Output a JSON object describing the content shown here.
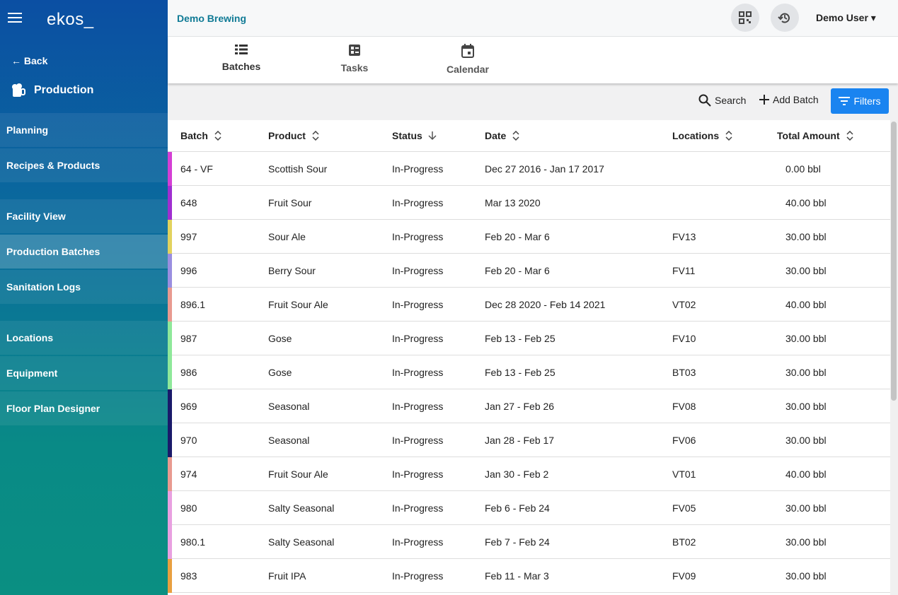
{
  "sidebar": {
    "logo": "ekos_",
    "back": "Back",
    "section": "Production",
    "groups": [
      [
        "Planning",
        "Recipes & Products"
      ],
      [
        "Facility View",
        "Production Batches",
        "Sanitation Logs"
      ],
      [
        "Locations",
        "Equipment",
        "Floor Plan Designer"
      ]
    ],
    "active": "Production Batches"
  },
  "header": {
    "company": "Demo Brewing",
    "user": "Demo User"
  },
  "tabs": [
    "Batches",
    "Tasks",
    "Calendar"
  ],
  "toolbar": {
    "search": "Search",
    "add": "Add Batch",
    "filters": "Filters"
  },
  "table": {
    "columns": [
      "Batch",
      "Product",
      "Status",
      "Date",
      "Locations",
      "Total Amount"
    ],
    "rows": [
      {
        "color": "#d43fd4",
        "cells": [
          "64 - VF",
          "Scottish Sour",
          "In-Progress",
          "Dec 27 2016 - Jan 17 2017",
          null,
          "0.00 bbl"
        ]
      },
      {
        "color": "#a02ed0",
        "cells": [
          "648",
          "Fruit Sour",
          "In-Progress",
          "Mar 13 2020",
          null,
          "40.00 bbl"
        ]
      },
      {
        "color": "#e2d25e",
        "cells": [
          "997",
          "Sour Ale",
          "In-Progress",
          "Feb 20 - Mar 6",
          "FV13",
          "30.00 bbl"
        ]
      },
      {
        "color": "#9a8ee0",
        "cells": [
          "996",
          "Berry Sour",
          "In-Progress",
          "Feb 20 - Mar 6",
          "FV11",
          "30.00 bbl"
        ]
      },
      {
        "color": "#e89a90",
        "cells": [
          "896.1",
          "Fruit Sour Ale",
          "In-Progress",
          "Dec 28 2020 - Feb 14 2021",
          "VT02",
          "40.00 bbl"
        ]
      },
      {
        "color": "#8ee89a",
        "cells": [
          "987",
          "Gose",
          "In-Progress",
          "Feb 13 - Feb 25",
          "FV10",
          "30.00 bbl"
        ]
      },
      {
        "color": "#8ee89a",
        "cells": [
          "986",
          "Gose",
          "In-Progress",
          "Feb 13 - Feb 25",
          "BT03",
          "30.00 bbl"
        ]
      },
      {
        "color": "#1a1a6a",
        "cells": [
          "969",
          "Seasonal",
          "In-Progress",
          "Jan 27 - Feb 26",
          "FV08",
          "30.00 bbl"
        ]
      },
      {
        "color": "#1a1a6a",
        "cells": [
          "970",
          "Seasonal",
          "In-Progress",
          "Jan 28 - Feb 17",
          "FV06",
          "30.00 bbl"
        ]
      },
      {
        "color": "#e89a90",
        "cells": [
          "974",
          "Fruit Sour Ale",
          "In-Progress",
          "Jan 30 - Feb 2",
          "VT01",
          "40.00 bbl"
        ]
      },
      {
        "color": "#e8a0e0",
        "cells": [
          "980",
          "Salty Seasonal",
          "In-Progress",
          "Feb 6 - Feb 24",
          "FV05",
          "30.00 bbl"
        ]
      },
      {
        "color": "#e8a0e0",
        "cells": [
          "980.1",
          "Salty Seasonal",
          "In-Progress",
          "Feb 7 - Feb 24",
          "BT02",
          "30.00 bbl"
        ]
      },
      {
        "color": "#e8a040",
        "cells": [
          "983",
          "Fruit IPA",
          "In-Progress",
          "Feb 11 - Mar 3",
          "FV09",
          "30.00 bbl"
        ]
      }
    ]
  }
}
